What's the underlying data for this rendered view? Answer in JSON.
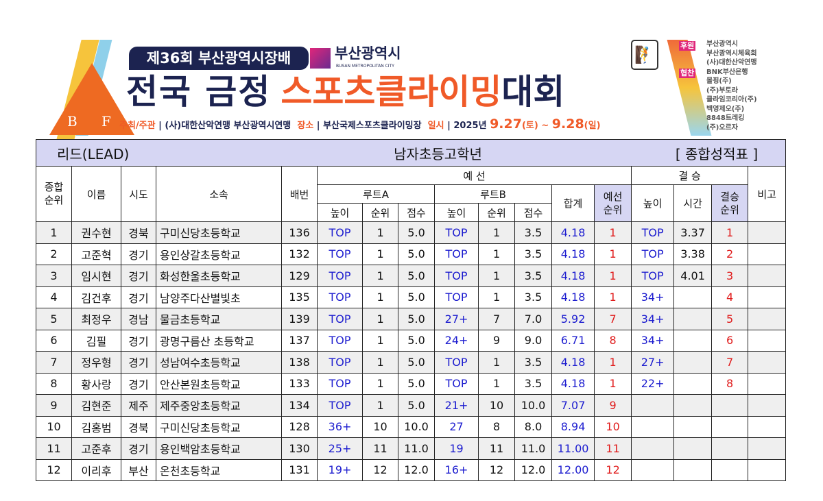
{
  "banner": {
    "edition": "제36회 부산광역시장배",
    "city_logo_name": "부산광역시",
    "city_logo_sub": "BUSAN METROPOLITAN CITY",
    "title_part1": "전국 금정",
    "title_part2": "스포츠클라이밍",
    "title_part3": "대회",
    "logo_letters": [
      "B",
      "F"
    ],
    "host_label": "주최/주관",
    "host": "(사)대한산악연맹 부산광역시연맹",
    "venue_label": "장소",
    "venue": "부산국제스포츠클라이밍장",
    "date_label": "일시",
    "year": "2025년",
    "date_start": "9.27",
    "day_start": "(토)",
    "tilde": "~",
    "date_end": "9.28",
    "day_end": "(일)",
    "sponsor_label": "후원",
    "sponsors": [
      "부산광역시",
      "부산광역시체육회",
      "(사)대한산악연맹"
    ],
    "cosponsor_label": "협찬",
    "cosponsors": [
      "BNK부산은행",
      "몰핑(주)",
      "(주)부토라",
      "클라임코리아(주)",
      "백영제오(주)",
      "8848트레킹",
      "(주)오르자"
    ],
    "icon": "climber-icon"
  },
  "sheet": {
    "discipline": "리드(LEAD)",
    "category": "남자초등고학년",
    "doc_type": "[ 종합성적표 ]",
    "headers": {
      "overall_rank": "종합\n순위",
      "name": "이름",
      "region": "시도",
      "team": "소속",
      "bib": "배번",
      "qual": "예 선",
      "route_a": "루트A",
      "route_b": "루트B",
      "height": "높이",
      "rank": "순위",
      "score": "점수",
      "total": "합계",
      "qual_rank": "예선\n순위",
      "final": "결 승",
      "time": "시간",
      "final_rank": "결승\n순위",
      "note": "비고"
    },
    "rows": [
      [
        "1",
        "권수현",
        "경북",
        "구미신당초등학교",
        "136",
        "TOP",
        "1",
        "5.0",
        "TOP",
        "1",
        "3.5",
        "4.18",
        "1",
        "TOP",
        "3.37",
        "1",
        ""
      ],
      [
        "2",
        "고준혁",
        "경기",
        "용인상갈초등학교",
        "132",
        "TOP",
        "1",
        "5.0",
        "TOP",
        "1",
        "3.5",
        "4.18",
        "1",
        "TOP",
        "3.38",
        "2",
        ""
      ],
      [
        "3",
        "임시현",
        "경기",
        "화성한울초등학교",
        "129",
        "TOP",
        "1",
        "5.0",
        "TOP",
        "1",
        "3.5",
        "4.18",
        "1",
        "TOP",
        "4.01",
        "3",
        ""
      ],
      [
        "4",
        "김건후",
        "경기",
        "남양주다산별빛초",
        "135",
        "TOP",
        "1",
        "5.0",
        "TOP",
        "1",
        "3.5",
        "4.18",
        "1",
        "34+",
        "",
        "4",
        ""
      ],
      [
        "5",
        "최정우",
        "경남",
        "물금초등학교",
        "139",
        "TOP",
        "1",
        "5.0",
        "27+",
        "7",
        "7.0",
        "5.92",
        "7",
        "34+",
        "",
        "5",
        ""
      ],
      [
        "6",
        "김필",
        "경기",
        "광명구름산 초등학교",
        "137",
        "TOP",
        "1",
        "5.0",
        "24+",
        "9",
        "9.0",
        "6.71",
        "8",
        "34+",
        "",
        "6",
        ""
      ],
      [
        "7",
        "정우형",
        "경기",
        "성남여수초등학교",
        "138",
        "TOP",
        "1",
        "5.0",
        "TOP",
        "1",
        "3.5",
        "4.18",
        "1",
        "27+",
        "",
        "7",
        ""
      ],
      [
        "8",
        "황사랑",
        "경기",
        "안산본원초등학교",
        "133",
        "TOP",
        "1",
        "5.0",
        "TOP",
        "1",
        "3.5",
        "4.18",
        "1",
        "22+",
        "",
        "8",
        ""
      ],
      [
        "9",
        "김현준",
        "제주",
        "제주중앙초등학교",
        "134",
        "TOP",
        "1",
        "5.0",
        "21+",
        "10",
        "10.0",
        "7.07",
        "9",
        "",
        "",
        "",
        ""
      ],
      [
        "10",
        "김홍범",
        "경북",
        "구미신당초등학교",
        "128",
        "36+",
        "10",
        "10.0",
        "27",
        "8",
        "8.0",
        "8.94",
        "10",
        "",
        "",
        "",
        ""
      ],
      [
        "11",
        "고준후",
        "경기",
        "용인백암초등학교",
        "130",
        "25+",
        "11",
        "11.0",
        "19",
        "11",
        "11.0",
        "11.00",
        "11",
        "",
        "",
        "",
        ""
      ],
      [
        "12",
        "이리후",
        "부산",
        "온천초등학교",
        "131",
        "19+",
        "12",
        "12.0",
        "16+",
        "12",
        "12.0",
        "12.00",
        "12",
        "",
        "",
        "",
        ""
      ]
    ]
  },
  "colors": {
    "navy": "#1c2350",
    "orange": "#f05a28",
    "header_lavender": "#d6d6f3",
    "value_blue": "#1c1ccf",
    "rank_red": "#e01b1b",
    "row_alt": "#efefef"
  }
}
